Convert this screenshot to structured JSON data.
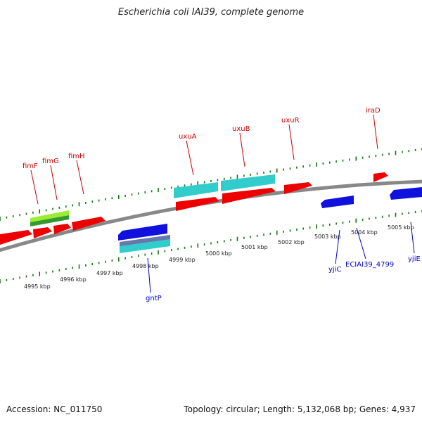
{
  "title": "Escherichia coli IAI39, complete genome",
  "footer": {
    "accession": "Accession: NC_011750",
    "summary": "Topology: circular; Length: 5,132,068 bp; Genes: 4,937"
  },
  "colors": {
    "forward_gene": "#ff0000",
    "reverse_gene": "#0000e0",
    "cds_cyan": "#33cccc",
    "cds_green": "#66cc33",
    "forward_label": "#cc0000",
    "reverse_label": "#0000cc",
    "tick": "#117711",
    "backbone": "#888888"
  },
  "tick_labels": [
    "4995 kbp",
    "4996 kbp",
    "4997 kbp",
    "4998 kbp",
    "4999 kbp",
    "5000 kbp",
    "5001 kbp",
    "5002 kbp",
    "5003 kbp",
    "5004 kbp",
    "5005 kbp"
  ],
  "forward_genes": [
    "fimF",
    "fimG",
    "fimH",
    "uxuA",
    "uxuB",
    "uxuR",
    "iraD"
  ],
  "reverse_genes": [
    "gntP",
    "yjiC",
    "ECIAI39_4799",
    "yjiE"
  ]
}
